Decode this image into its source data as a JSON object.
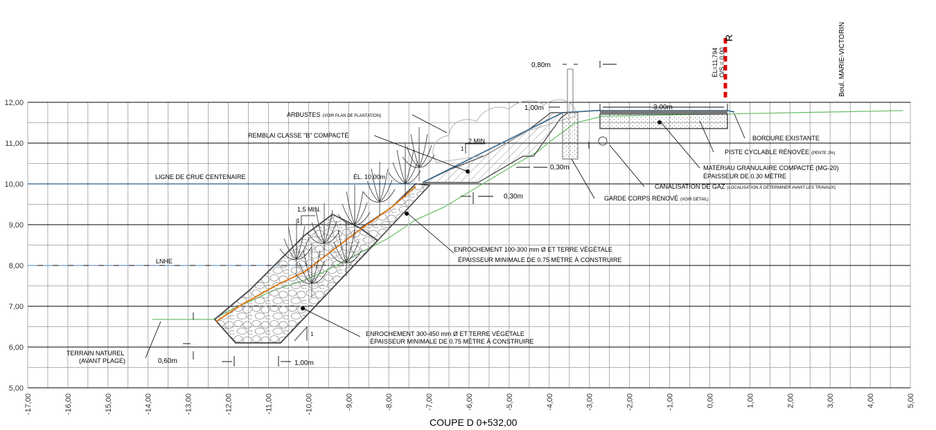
{
  "y_axis_labels": [
    "12,00",
    "11,00",
    "10,00",
    "9,00",
    "8,00",
    "7,00",
    "6,00",
    "5,00"
  ],
  "x_axis_labels": [
    "-17,00",
    "-16,00",
    "-15,00",
    "-14,00",
    "-13,00",
    "-12,00",
    "-11,00",
    "-10,00",
    "-9,00",
    "-8,00",
    "-7,00",
    "-6,00",
    "-5,00",
    "-4,00",
    "-3,00",
    "-2,00",
    "-1,00",
    "0,00",
    "1,00",
    "2,00",
    "3,00",
    "4,00",
    "5,00"
  ],
  "title": "COUPE D 0+532,00",
  "road_name": "Boul. MARIE-VICTORIN",
  "axis_marker": {
    "letter": "R",
    "elevation": "ÉL=11,794",
    "offset": "O/S = 0,00"
  },
  "water_levels": {
    "flood_label": "LIGNE DE CRUE CENTENAIRE",
    "lnhe_label": "LNHE",
    "el_label": "ÉL. 10,00m"
  },
  "slopes": {
    "upper": "2 MIN.",
    "lower": "1,5 MIN.",
    "one": "1"
  },
  "dimensions": {
    "d080": "0,80m",
    "d100_top": "1,00m",
    "d300": "3,00m",
    "d030_a": "0,30m",
    "d030_b": "0,30m",
    "d060": "0,60m",
    "d100_bottom": "1,00m"
  },
  "notes": {
    "arbustes": "ARBUSTES",
    "arbustes_small": "(VOIR PLAN DE PLANTATION)",
    "remblai": "REMBLAI CLASSE \"B\" COMPACTÉ",
    "bordure": "BORDURE EXISTANTE",
    "piste": "PISTE CYCLABLE RÉNOVÉE",
    "piste_small": "(PENTE 2%)",
    "materiau_1": "MATÉRIAU GRANULAIRE COMPACTÉ (MG-20)",
    "materiau_2": "ÉPAISSEUR DE 0.30 MÈTRE",
    "gaz": "CANALISATION DE GAZ",
    "gaz_small": "(LOCALISATION À DÉTERMINER AVANT LES TRAVAUX)",
    "garde": "GARDE CORPS RÉNOVÉ",
    "garde_small": "(VOIR DÉTAIL)",
    "enr_upper_1": "ENROCHEMENT 100-300 mm Ø ET TERRE VÉGÉTALE",
    "enr_upper_2": "ÉPAISSEUR MINIMALE DE 0.75 MÈTRE À CONSTRUIRE",
    "enr_lower_1": "ENROCHEMENT 300-450 mm Ø ET TERRE VÉGÉTALE",
    "enr_lower_2": "ÉPAISSEUR MINIMALE DE 0.75 MÈTRE À CONSTRUIRE",
    "terrain_1": "TERRAIN NATUREL",
    "terrain_2": "(AVANT PLAGE)"
  },
  "colors": {
    "flood_line": "#2a5d8f",
    "lnhe_line": "#4a7fc0",
    "existing_ground": "#6cc06c",
    "geotextile": "#e07b1c",
    "slope_blue": "#3e6e90",
    "marker_red": "#e00000"
  }
}
